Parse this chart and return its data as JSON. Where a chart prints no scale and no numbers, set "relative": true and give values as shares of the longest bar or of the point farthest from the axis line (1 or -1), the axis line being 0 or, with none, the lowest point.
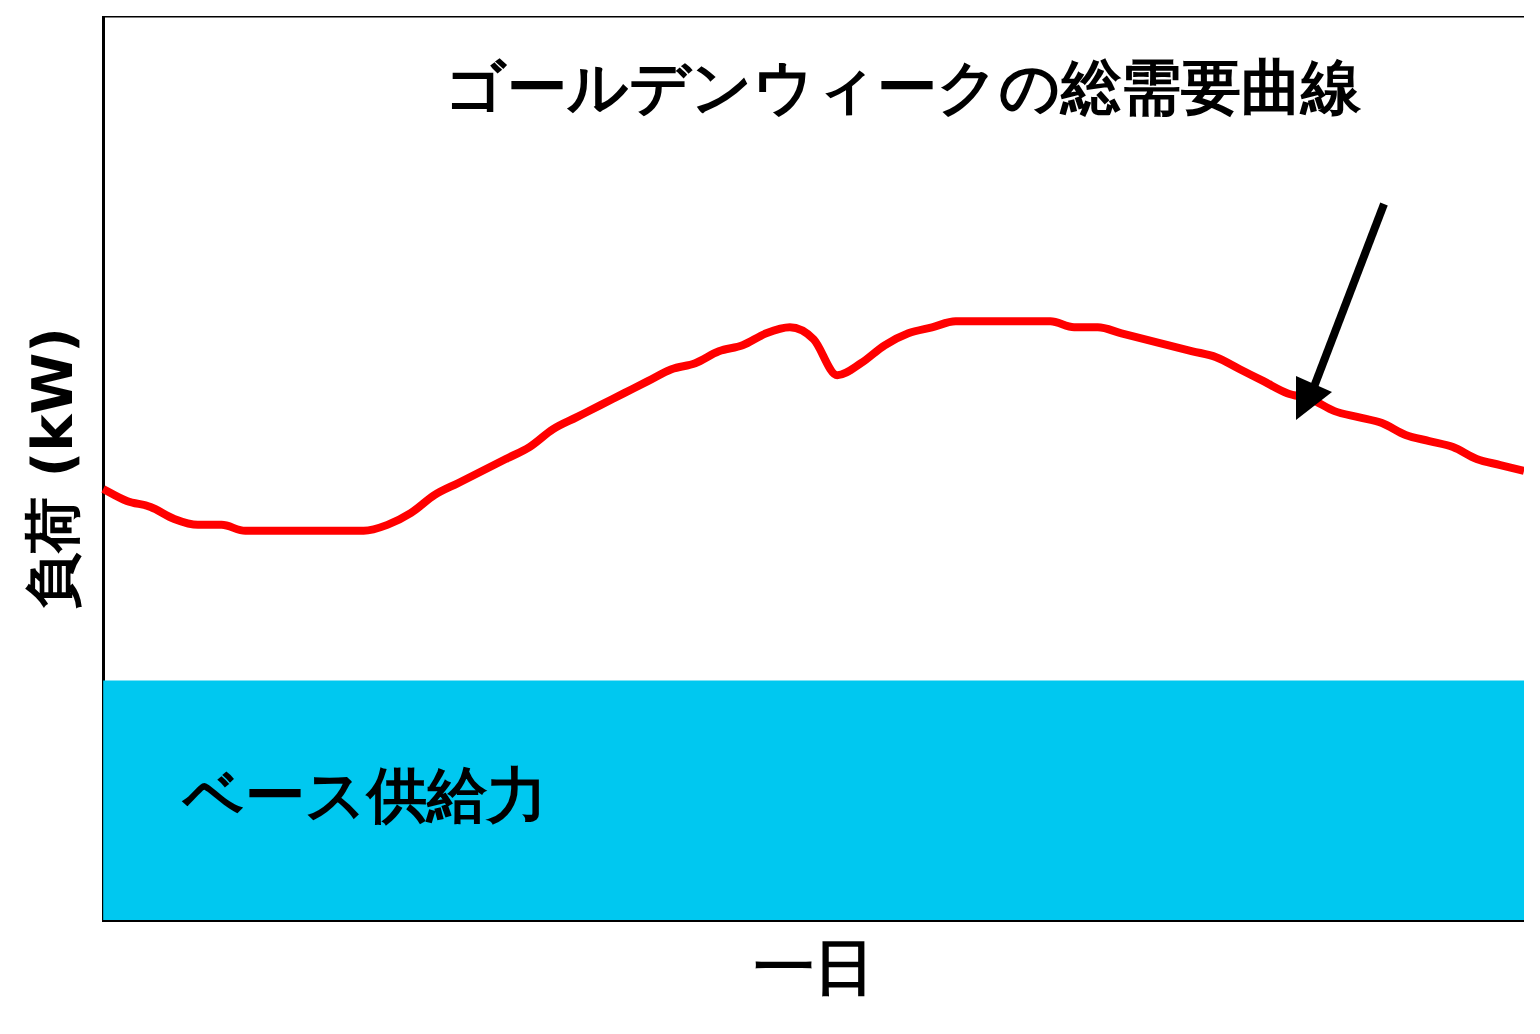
{
  "chart_data": {
    "type": "line",
    "relative": true,
    "xlabel": "一日",
    "ylabel": "負荷 (kW)",
    "categories": [
      null,
      null,
      null,
      null,
      null,
      null,
      null,
      null,
      null,
      null,
      null,
      null,
      null,
      null,
      null,
      null,
      null,
      null,
      null,
      null,
      null,
      null,
      null,
      null,
      null,
      null,
      null,
      null,
      null,
      null,
      null,
      null,
      null,
      null,
      null,
      null,
      null,
      null,
      null,
      null,
      null,
      null,
      null,
      null,
      null,
      null,
      null,
      null,
      null,
      null,
      null,
      null,
      null,
      null,
      null,
      null,
      null,
      null,
      null,
      null,
      null
    ],
    "series": [
      {
        "color": "#ff0000",
        "values": [
          0.72,
          0.7,
          0.69,
          0.67,
          0.66,
          0.66,
          0.65,
          0.65,
          0.65,
          0.65,
          0.65,
          0.65,
          0.66,
          0.68,
          0.71,
          0.73,
          0.75,
          0.77,
          0.79,
          0.82,
          0.84,
          0.86,
          0.88,
          0.9,
          0.92,
          0.93,
          0.95,
          0.96,
          0.98,
          0.99,
          0.97,
          0.91,
          0.93,
          0.96,
          0.98,
          0.99,
          1.0,
          1.0,
          1.0,
          1.0,
          1.0,
          0.99,
          0.99,
          0.98,
          0.97,
          0.96,
          0.95,
          0.94,
          0.92,
          0.9,
          0.88,
          0.87,
          0.85,
          0.84,
          0.83,
          0.81,
          0.8,
          0.79,
          0.77,
          0.76,
          0.75
        ]
      }
    ],
    "bands": [
      {
        "axis": "y",
        "from": 0,
        "to": 0.4,
        "label": "ベース供給力",
        "color": "#00c8f0"
      }
    ],
    "annotations": [
      "ゴールデンウィークの総需要曲線"
    ],
    "legend": false,
    "grid": false,
    "marker": "none",
    "line_style": "solid"
  }
}
